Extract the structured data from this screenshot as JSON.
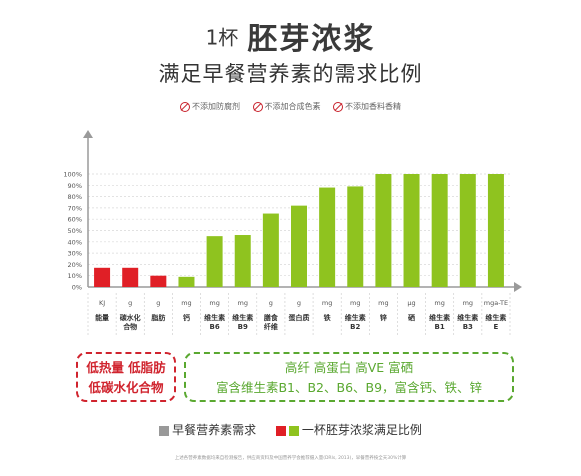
{
  "header": {
    "title_prefix": "1杯",
    "title_main": "胚芽浓浆",
    "subtitle": "满足早餐营养素的需求比例"
  },
  "badges": [
    "不添加防腐剂",
    "不添加合成色素",
    "不添加香料香精"
  ],
  "colors": {
    "requirement": "#999999",
    "low_nutrient": "#e01f26",
    "provided": "#8fc31f",
    "callout_red": "#d0242e",
    "callout_green": "#5aa830"
  },
  "chart_data": {
    "type": "bar",
    "yticks": [
      "0%",
      "10%",
      "20%",
      "30%",
      "40%",
      "50%",
      "60%",
      "70%",
      "80%",
      "90%",
      "100%"
    ],
    "ylim": [
      0,
      100
    ],
    "units": [
      "KJ",
      "g",
      "g",
      "mg",
      "mg",
      "mg",
      "g",
      "g",
      "mg",
      "mg",
      "mg",
      "μg",
      "mg",
      "mg",
      "mga-TE"
    ],
    "categories": [
      "能量",
      "碳水化合物",
      "脂肪",
      "钙",
      "维生素B6",
      "维生素B9",
      "膳食纤维",
      "蛋白质",
      "铁",
      "维生素B2",
      "锌",
      "硒",
      "维生素B1",
      "维生素B3",
      "维生素E"
    ],
    "category_lines": [
      [
        "能量"
      ],
      [
        "碳水化",
        "合物"
      ],
      [
        "脂肪"
      ],
      [
        "钙"
      ],
      [
        "维生素",
        "B6"
      ],
      [
        "维生素",
        "B9"
      ],
      [
        "膳食",
        "纤维"
      ],
      [
        "蛋白质"
      ],
      [
        "铁"
      ],
      [
        "维生素",
        "B2"
      ],
      [
        "锌"
      ],
      [
        "硒"
      ],
      [
        "维生素",
        "B1"
      ],
      [
        "维生素",
        "B3"
      ],
      [
        "维生素",
        "E"
      ]
    ],
    "values": [
      17,
      17,
      10,
      9,
      45,
      46,
      65,
      72,
      88,
      89,
      100,
      100,
      100,
      100,
      100
    ],
    "bar_colors": [
      "#e01f26",
      "#e01f26",
      "#e01f26",
      "#8fc31f",
      "#8fc31f",
      "#8fc31f",
      "#8fc31f",
      "#8fc31f",
      "#8fc31f",
      "#8fc31f",
      "#8fc31f",
      "#8fc31f",
      "#8fc31f",
      "#8fc31f",
      "#8fc31f"
    ],
    "grid": true
  },
  "callouts": {
    "left_line1": "低热量 低脂肪",
    "left_line2": "低碳水化合物",
    "right_line1": "高纤 高蛋白 高VE 富硒",
    "right_line2": "富含维生素B1、B2、B6、B9，富含钙、铁、锌"
  },
  "legend": {
    "requirement": "早餐营养素需求",
    "provided": "一杯胚芽浓浆满足比例"
  },
  "footnote": "上述各营养素数据均来自检测报告，供应商资料及中国营养学会推荐摄入量(DRIs, 2013)，早餐营养按全天30%计算"
}
